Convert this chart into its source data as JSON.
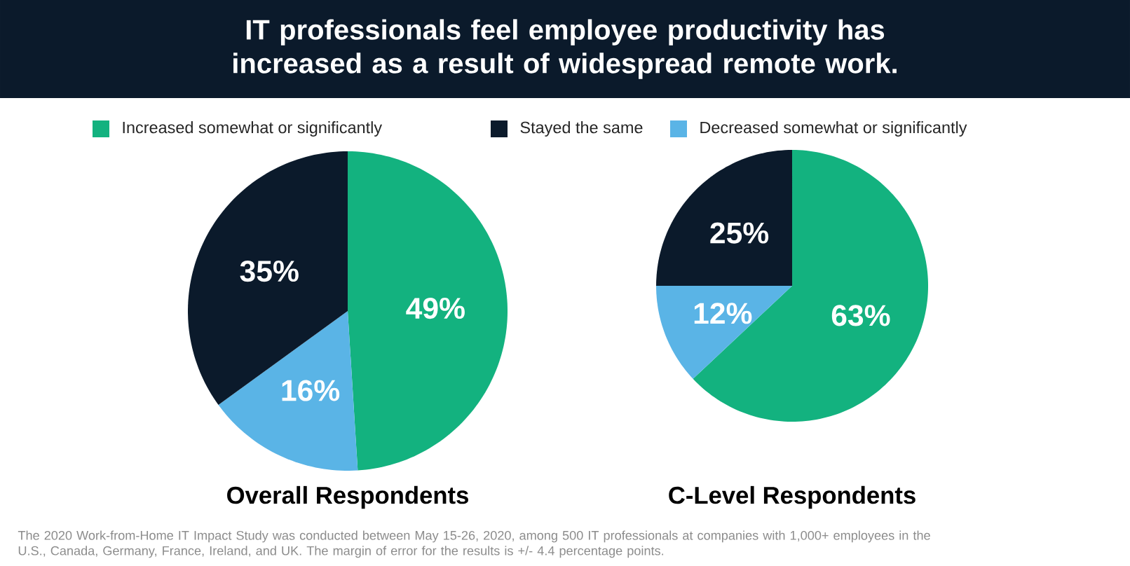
{
  "chart_data": [
    {
      "type": "pie",
      "title": "Overall Respondents",
      "categories": [
        "Increased somewhat or significantly",
        "Stayed the same",
        "Decreased somewhat or significantly"
      ],
      "values": [
        49,
        35,
        16
      ],
      "value_labels": [
        "49%",
        "35%",
        "16%"
      ],
      "colors": [
        "#13b27f",
        "#0b1a2b",
        "#5ab4e6"
      ],
      "legend": "top",
      "annotations": [
        "IT professionals feel employee productivity has increased as a result of widespread remote work.",
        "The 2020 Work-from-Home IT Impact Study was conducted between May 15-26, 2020, among 500 IT professionals at companies with 1,000+ employees in the U.S., Canada, Germany, France, Ireland, and UK. The margin of error for the results is +/- 4.4 percentage points."
      ]
    },
    {
      "type": "pie",
      "title": "C-Level Respondents",
      "categories": [
        null,
        null,
        null
      ],
      "values": [
        63,
        25,
        12
      ],
      "value_labels": [
        "63%",
        "25%",
        "12%"
      ],
      "colors": [
        "#13b27f",
        "#0b1a2b",
        "#5ab4e6"
      ]
    }
  ]
}
